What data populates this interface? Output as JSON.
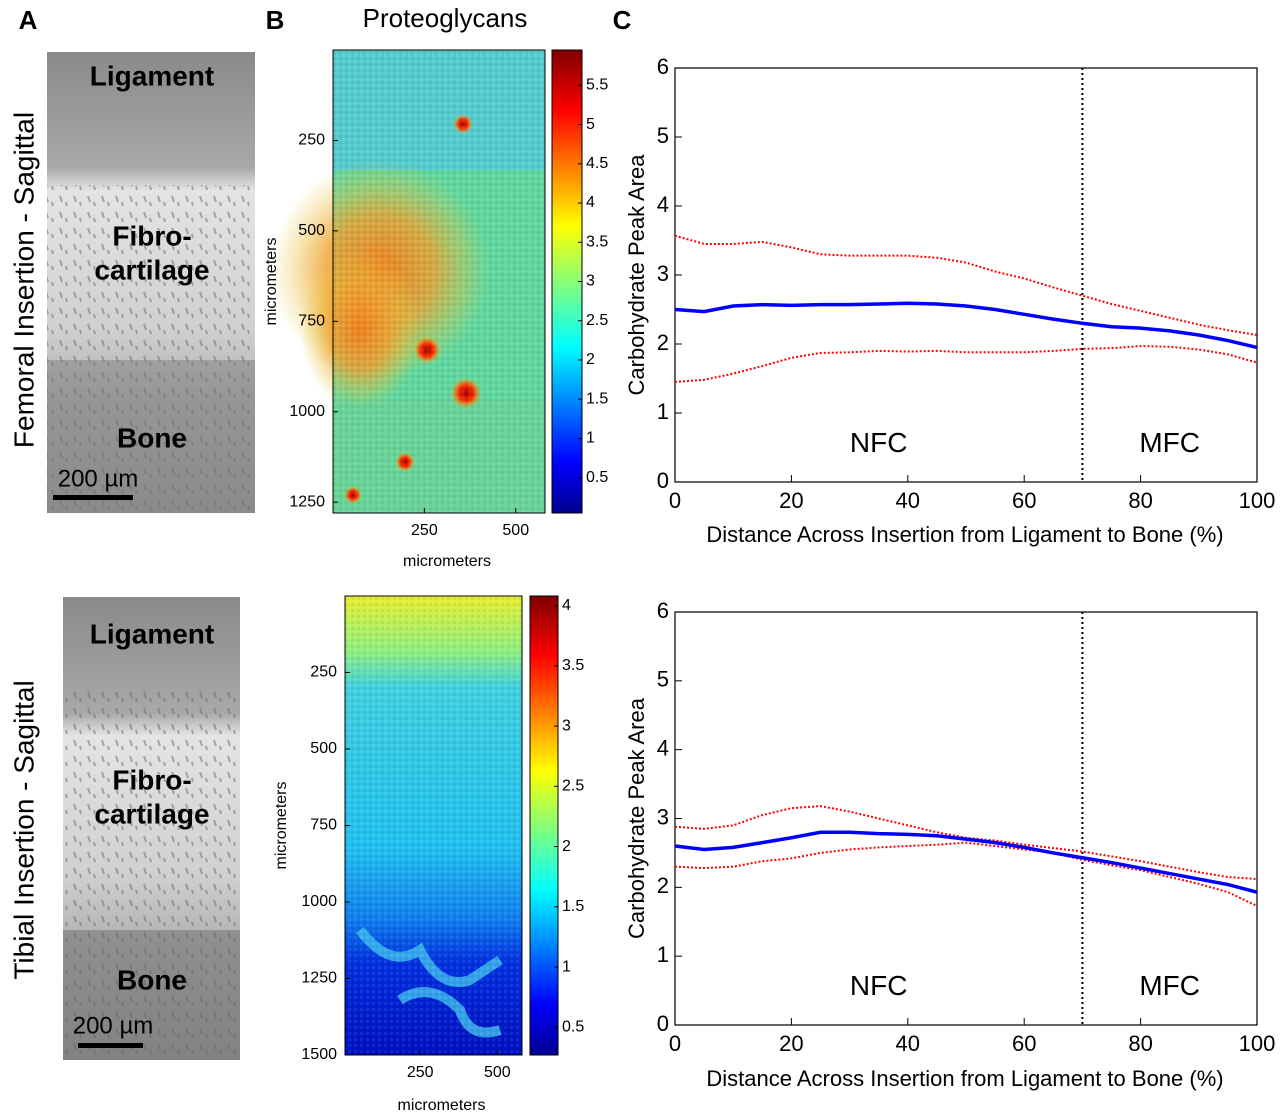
{
  "panel_labels": [
    "A",
    "B",
    "C"
  ],
  "images": [
    {
      "row_label": "Femoral Insertion - Sagittal",
      "labels": [
        "Ligament",
        "Fibro-",
        "cartilage",
        "Bone"
      ],
      "scale_bar": "200 µm"
    },
    {
      "row_label": "Tibial Insertion - Sagittal",
      "labels": [
        "Ligament",
        "Fibro-",
        "cartilage",
        "Bone"
      ],
      "scale_bar": "200 µm"
    }
  ],
  "chart_data": [
    {
      "type": "heatmap",
      "title": "Proteoglycans",
      "xlabel": "micrometers",
      "ylabel": "micrometers",
      "xlim": [
        0,
        580
      ],
      "xticks": [
        250,
        500
      ],
      "ylim": [
        0,
        1280
      ],
      "yticks": [
        250,
        500,
        750,
        1000,
        1250
      ],
      "y_reversed": true,
      "clim": [
        0.05,
        5.95
      ],
      "cticks": [
        0.5,
        1,
        1.5,
        2,
        2.5,
        3,
        3.5,
        4,
        4.5,
        5,
        5.5
      ],
      "colormap": "jet"
    },
    {
      "type": "heatmap",
      "xlabel": "micrometers",
      "ylabel": "micrometers",
      "xlim": [
        6,
        580
      ],
      "xticks": [
        250,
        500
      ],
      "ylim": [
        0,
        1500
      ],
      "yticks": [
        250,
        500,
        750,
        1000,
        1250,
        1500
      ],
      "y_reversed": true,
      "clim": [
        0.27,
        4.08
      ],
      "cticks": [
        0.5,
        1,
        1.5,
        2,
        2.5,
        3,
        3.5,
        4
      ],
      "colormap": "jet"
    },
    {
      "type": "line",
      "xlabel": "Distance Across Insertion from Ligament to Bone (%)",
      "ylabel": "Carbohydrate Peak Area",
      "x": [
        0,
        5,
        10,
        15,
        20,
        25,
        30,
        35,
        40,
        45,
        50,
        55,
        60,
        65,
        70,
        75,
        80,
        85,
        90,
        95,
        100
      ],
      "xlim": [
        0,
        100
      ],
      "xticks": [
        0,
        20,
        40,
        60,
        80,
        100
      ],
      "ylim": [
        0,
        6
      ],
      "yticks": [
        0,
        1,
        2,
        3,
        4,
        5,
        6
      ],
      "series": [
        {
          "color": "#ff0000",
          "style": "dotted",
          "values": [
            3.57,
            3.45,
            3.45,
            3.48,
            3.4,
            3.3,
            3.28,
            3.28,
            3.28,
            3.25,
            3.18,
            3.05,
            2.95,
            2.82,
            2.7,
            2.58,
            2.48,
            2.38,
            2.28,
            2.2,
            2.13
          ]
        },
        {
          "color": "#ff0000",
          "style": "dotted",
          "values": [
            1.45,
            1.48,
            1.57,
            1.68,
            1.8,
            1.87,
            1.88,
            1.9,
            1.89,
            1.9,
            1.88,
            1.88,
            1.88,
            1.9,
            1.93,
            1.94,
            1.97,
            1.96,
            1.92,
            1.85,
            1.73
          ]
        },
        {
          "color": "#0000ff",
          "style": "solid",
          "values": [
            2.5,
            2.47,
            2.55,
            2.57,
            2.56,
            2.57,
            2.57,
            2.58,
            2.59,
            2.58,
            2.55,
            2.5,
            2.43,
            2.36,
            2.3,
            2.25,
            2.23,
            2.19,
            2.13,
            2.05,
            1.95
          ]
        }
      ],
      "vline": 70,
      "annotations": [
        "NFC",
        "MFC"
      ]
    },
    {
      "type": "line",
      "xlabel": "Distance Across Insertion from Ligament to Bone (%)",
      "ylabel": "Carbohydrate Peak Area",
      "x": [
        0,
        5,
        10,
        15,
        20,
        25,
        30,
        35,
        40,
        45,
        50,
        55,
        60,
        65,
        70,
        75,
        80,
        85,
        90,
        95,
        100
      ],
      "xlim": [
        0,
        100
      ],
      "xticks": [
        0,
        20,
        40,
        60,
        80,
        100
      ],
      "ylim": [
        0,
        6
      ],
      "yticks": [
        0,
        1,
        2,
        3,
        4,
        5,
        6
      ],
      "series": [
        {
          "color": "#ff0000",
          "style": "dotted",
          "values": [
            2.88,
            2.85,
            2.9,
            3.05,
            3.15,
            3.18,
            3.1,
            3.0,
            2.9,
            2.8,
            2.72,
            2.68,
            2.62,
            2.57,
            2.52,
            2.45,
            2.38,
            2.3,
            2.22,
            2.15,
            2.12
          ]
        },
        {
          "color": "#ff0000",
          "style": "dotted",
          "values": [
            2.3,
            2.28,
            2.3,
            2.38,
            2.42,
            2.5,
            2.55,
            2.58,
            2.6,
            2.62,
            2.65,
            2.6,
            2.55,
            2.5,
            2.4,
            2.32,
            2.25,
            2.15,
            2.05,
            1.93,
            1.73
          ]
        },
        {
          "color": "#0000ff",
          "style": "solid",
          "values": [
            2.6,
            2.55,
            2.58,
            2.65,
            2.72,
            2.8,
            2.8,
            2.78,
            2.77,
            2.75,
            2.7,
            2.65,
            2.58,
            2.5,
            2.43,
            2.36,
            2.28,
            2.2,
            2.12,
            2.04,
            1.93
          ]
        }
      ],
      "vline": 70,
      "annotations": [
        "NFC",
        "MFC"
      ]
    }
  ]
}
